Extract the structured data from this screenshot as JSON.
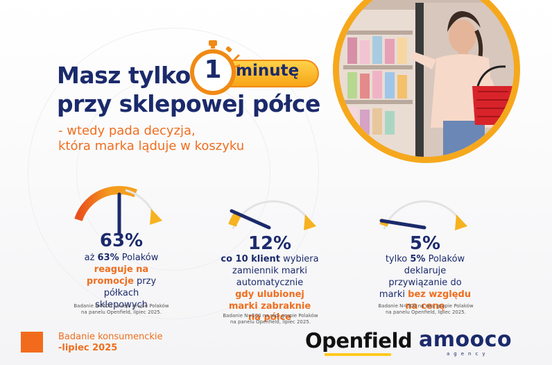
{
  "header": {
    "title_before_badge": "Masz tylko",
    "title_line2": "przy sklepowej półce",
    "badge_number": "1",
    "badge_word": "minutę",
    "subtitle_line1": "- wtedy pada decyzja,",
    "subtitle_line2": "która marka ląduje w koszyku"
  },
  "photo": {
    "icon": "shopper-photo"
  },
  "stats": [
    {
      "value": 63,
      "percent": "63%",
      "lines": [
        [
          {
            "t": "aż "
          },
          {
            "t": "63%",
            "s": "b"
          },
          {
            "t": " Polaków"
          }
        ],
        [
          {
            "t": "reaguje na",
            "s": "hl"
          }
        ],
        [
          {
            "t": "promocje",
            "s": "hl"
          },
          {
            "t": " przy"
          }
        ],
        [
          {
            "t": "półkach"
          }
        ],
        [
          {
            "t": "sklepowych"
          }
        ]
      ],
      "note_line1": "Badanie N=500 na rep. grupie Polaków",
      "note_line2": "na panelu Openfield, lipiec 2025."
    },
    {
      "value": 12,
      "percent": "12%",
      "lines": [
        [
          {
            "t": "co 10 klient",
            "s": "b"
          },
          {
            "t": " wybiera"
          }
        ],
        [
          {
            "t": "zamiennik marki"
          }
        ],
        [
          {
            "t": "automatycznie"
          }
        ],
        [
          {
            "t": "gdy ulubionej",
            "s": "hl"
          }
        ],
        [
          {
            "t": "marki zabraknie",
            "s": "hl"
          }
        ],
        [
          {
            "t": "na półce",
            "s": "hl"
          }
        ]
      ],
      "note_line1": "Badanie N=500 na rep. grupie Polaków",
      "note_line2": "na panelu Openfield, lipiec 2025."
    },
    {
      "value": 5,
      "percent": "5%",
      "lines": [
        [
          {
            "t": "tylko "
          },
          {
            "t": "5%",
            "s": "b"
          },
          {
            "t": " Polaków"
          }
        ],
        [
          {
            "t": "deklaruje"
          }
        ],
        [
          {
            "t": "przywiązanie do"
          }
        ],
        [
          {
            "t": "marki "
          },
          {
            "t": "bez względu",
            "s": "hl"
          }
        ],
        [
          {
            "t": "na cenę",
            "s": "hl"
          }
        ]
      ],
      "note_line1": "Badanie N=500 na rep. grupie Polaków",
      "note_line2": "na panelu Openfield, lipiec 2025."
    }
  ],
  "footer": {
    "badanie_line1": "Badanie konsumenckie",
    "badanie_line2": "-lipiec 2025",
    "logo_openfield": "Openfield",
    "logo_amooco": "amooco",
    "logo_agency": "agency"
  },
  "colors": {
    "navy": "#1b2a6b",
    "orange": "#ef6e1f",
    "yellow": "#f6b21f",
    "accent_red": "#e94e1b"
  }
}
